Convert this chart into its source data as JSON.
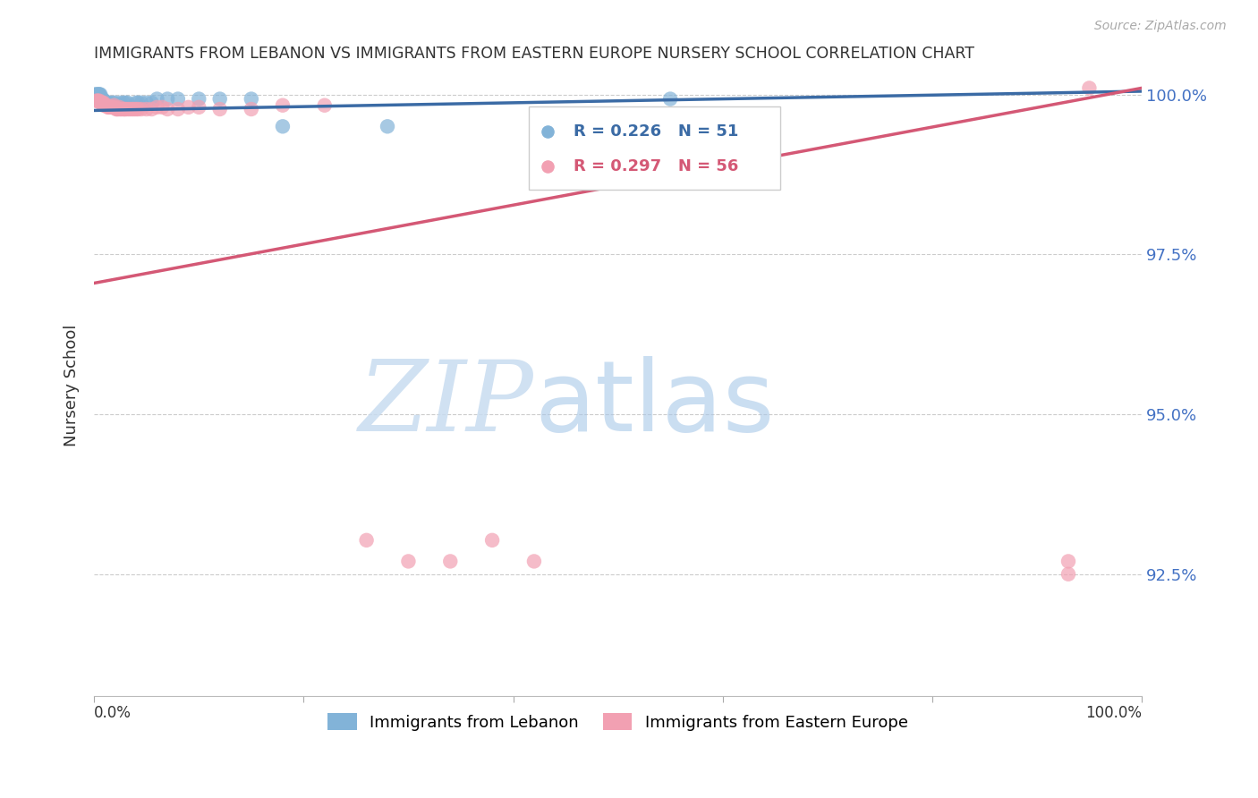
{
  "title": "IMMIGRANTS FROM LEBANON VS IMMIGRANTS FROM EASTERN EUROPE NURSERY SCHOOL CORRELATION CHART",
  "source": "Source: ZipAtlas.com",
  "ylabel": "Nursery School",
  "xmin": 0.0,
  "xmax": 1.0,
  "ymin": 0.906,
  "ymax": 1.003,
  "ytick_positions": [
    0.925,
    0.95,
    0.975,
    1.0
  ],
  "ytick_labels": [
    "92.5%",
    "95.0%",
    "97.5%",
    "100.0%"
  ],
  "legend_label_blue": "Immigrants from Lebanon",
  "legend_label_pink": "Immigrants from Eastern Europe",
  "legend_R_blue": "R = 0.226",
  "legend_N_blue": "N = 51",
  "legend_R_pink": "R = 0.297",
  "legend_N_pink": "N = 56",
  "blue_color": "#82B3D8",
  "pink_color": "#F2A0B2",
  "blue_line_color": "#3B6BA5",
  "pink_line_color": "#D45875",
  "right_axis_color": "#4472C4",
  "title_color": "#333333",
  "background_color": "#FFFFFF",
  "grid_color": "#CCCCCC",
  "blue_line_x": [
    0.0,
    1.0
  ],
  "blue_line_y": [
    0.9975,
    1.0005
  ],
  "pink_line_x": [
    0.0,
    1.0
  ],
  "pink_line_y": [
    0.9705,
    1.001
  ],
  "blue_x": [
    0.001,
    0.001,
    0.002,
    0.002,
    0.003,
    0.003,
    0.003,
    0.004,
    0.004,
    0.004,
    0.005,
    0.005,
    0.005,
    0.005,
    0.006,
    0.006,
    0.006,
    0.006,
    0.007,
    0.007,
    0.007,
    0.008,
    0.008,
    0.009,
    0.009,
    0.01,
    0.01,
    0.011,
    0.012,
    0.013,
    0.015,
    0.018,
    0.02,
    0.025,
    0.028,
    0.03,
    0.032,
    0.04,
    0.042,
    0.045,
    0.05,
    0.055,
    0.06,
    0.07,
    0.08,
    0.1,
    0.12,
    0.15,
    0.18,
    0.28,
    0.55
  ],
  "blue_y": [
    0.9997,
    1.0,
    0.9997,
    1.0,
    0.9997,
    1.0,
    0.9997,
    0.9997,
    1.0,
    0.9997,
    0.9997,
    0.9997,
    1.0,
    1.0,
    0.9993,
    0.9993,
    0.9997,
    1.0,
    0.9993,
    0.999,
    0.9993,
    0.9987,
    0.9993,
    0.9987,
    0.999,
    0.9987,
    0.999,
    0.9987,
    0.9987,
    0.9987,
    0.9987,
    0.9987,
    0.9987,
    0.9987,
    0.9987,
    0.9987,
    0.9987,
    0.9987,
    0.9987,
    0.9987,
    0.9987,
    0.9987,
    0.9993,
    0.9993,
    0.9993,
    0.9993,
    0.9993,
    0.9993,
    0.995,
    0.995,
    0.9993
  ],
  "pink_x": [
    0.002,
    0.003,
    0.004,
    0.005,
    0.006,
    0.007,
    0.008,
    0.009,
    0.009,
    0.01,
    0.011,
    0.012,
    0.013,
    0.014,
    0.015,
    0.016,
    0.017,
    0.018,
    0.019,
    0.02,
    0.021,
    0.022,
    0.023,
    0.024,
    0.025,
    0.026,
    0.028,
    0.029,
    0.03,
    0.032,
    0.034,
    0.036,
    0.038,
    0.04,
    0.042,
    0.045,
    0.05,
    0.055,
    0.06,
    0.065,
    0.07,
    0.08,
    0.09,
    0.1,
    0.12,
    0.15,
    0.18,
    0.22,
    0.26,
    0.3,
    0.34,
    0.38,
    0.42,
    0.93,
    0.93,
    0.95
  ],
  "pink_y": [
    0.999,
    0.999,
    0.999,
    0.999,
    0.9987,
    0.9987,
    0.9987,
    0.9983,
    0.9987,
    0.9983,
    0.9983,
    0.9983,
    0.998,
    0.998,
    0.998,
    0.998,
    0.998,
    0.998,
    0.9983,
    0.998,
    0.9977,
    0.9977,
    0.9977,
    0.998,
    0.9977,
    0.9977,
    0.9977,
    0.9977,
    0.9977,
    0.9977,
    0.9977,
    0.9977,
    0.9977,
    0.9977,
    0.9977,
    0.9977,
    0.9977,
    0.9977,
    0.998,
    0.998,
    0.9977,
    0.9977,
    0.998,
    0.998,
    0.9977,
    0.9977,
    0.9983,
    0.9983,
    0.9303,
    0.927,
    0.927,
    0.9303,
    0.927,
    0.927,
    0.925,
    1.001
  ]
}
